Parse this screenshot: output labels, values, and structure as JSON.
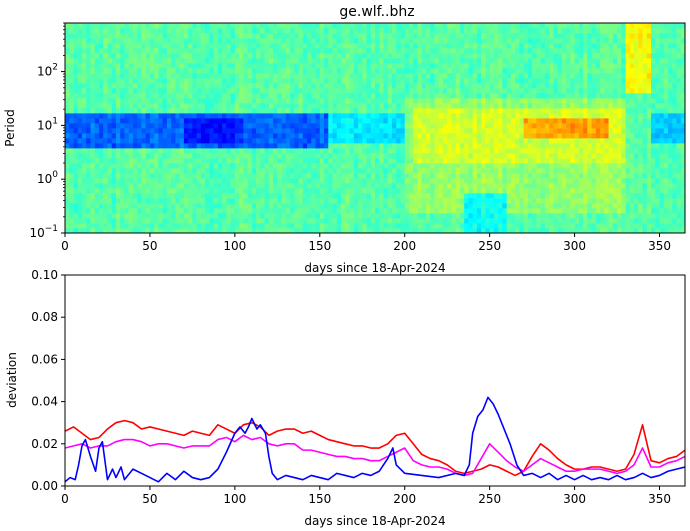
{
  "chart_data": [
    {
      "type": "heatmap",
      "title": "ge.wlf..bhz",
      "xlabel": "days since 18-Apr-2024",
      "ylabel": "Period",
      "xlim": [
        0,
        365
      ],
      "ylim": [
        0.1,
        800
      ],
      "yscale": "log",
      "x_ticks": [
        "0",
        "50",
        "100",
        "150",
        "200",
        "250",
        "300",
        "350"
      ],
      "y_ticks": [
        {
          "base": "10",
          "exp": "−1"
        },
        {
          "base": "10",
          "exp": "0"
        },
        {
          "base": "10",
          "exp": "1"
        },
        {
          "base": "10",
          "exp": "2"
        }
      ],
      "colormap": "jet",
      "features": [
        {
          "x": [
            0,
            155
          ],
          "period": [
            4,
            18
          ],
          "level": 0.22,
          "desc": "strong low band"
        },
        {
          "x": [
            70,
            105
          ],
          "period": [
            5,
            15
          ],
          "level": 0.15,
          "desc": "deepest low"
        },
        {
          "x": [
            270,
            320
          ],
          "period": [
            6,
            14
          ],
          "level": 0.72,
          "desc": "high band"
        },
        {
          "x": [
            235,
            260
          ],
          "period": [
            0.1,
            0.5
          ],
          "level": 0.38,
          "desc": "low patch"
        },
        {
          "x": [
            330,
            345
          ],
          "period": [
            40,
            800
          ],
          "level": 0.62,
          "desc": "high column"
        }
      ]
    },
    {
      "type": "line",
      "xlabel": "days since 18-Apr-2024",
      "ylabel": "deviation",
      "xlim": [
        0,
        365
      ],
      "ylim": [
        0,
        0.1
      ],
      "x_ticks": [
        "0",
        "50",
        "100",
        "150",
        "200",
        "250",
        "300",
        "350"
      ],
      "y_ticks": [
        "0.00",
        "0.02",
        "0.04",
        "0.06",
        "0.08",
        "0.10"
      ],
      "series": [
        {
          "color": "#ff0000",
          "x": [
            0,
            5,
            10,
            15,
            20,
            25,
            30,
            35,
            40,
            45,
            50,
            55,
            60,
            65,
            70,
            75,
            80,
            85,
            90,
            95,
            100,
            105,
            110,
            115,
            120,
            125,
            130,
            135,
            140,
            145,
            150,
            155,
            160,
            165,
            170,
            175,
            180,
            185,
            190,
            195,
            200,
            205,
            210,
            215,
            220,
            225,
            230,
            235,
            240,
            245,
            250,
            255,
            260,
            265,
            270,
            275,
            280,
            285,
            290,
            295,
            300,
            305,
            310,
            315,
            320,
            325,
            330,
            335,
            340,
            345,
            350,
            355,
            360,
            365
          ],
          "values": [
            0.026,
            0.028,
            0.025,
            0.022,
            0.023,
            0.027,
            0.03,
            0.031,
            0.03,
            0.027,
            0.028,
            0.027,
            0.026,
            0.025,
            0.024,
            0.026,
            0.025,
            0.024,
            0.029,
            0.027,
            0.025,
            0.029,
            0.03,
            0.028,
            0.024,
            0.026,
            0.027,
            0.027,
            0.025,
            0.026,
            0.024,
            0.022,
            0.021,
            0.02,
            0.019,
            0.019,
            0.018,
            0.018,
            0.02,
            0.024,
            0.025,
            0.02,
            0.015,
            0.013,
            0.012,
            0.01,
            0.007,
            0.006,
            0.007,
            0.008,
            0.01,
            0.009,
            0.007,
            0.005,
            0.007,
            0.014,
            0.02,
            0.017,
            0.013,
            0.01,
            0.008,
            0.008,
            0.009,
            0.009,
            0.008,
            0.007,
            0.008,
            0.015,
            0.029,
            0.012,
            0.011,
            0.013,
            0.014,
            0.017
          ]
        },
        {
          "color": "#ff00ff",
          "x": [
            0,
            5,
            10,
            15,
            20,
            25,
            30,
            35,
            40,
            45,
            50,
            55,
            60,
            65,
            70,
            75,
            80,
            85,
            90,
            95,
            100,
            105,
            110,
            115,
            120,
            125,
            130,
            135,
            140,
            145,
            150,
            155,
            160,
            165,
            170,
            175,
            180,
            185,
            190,
            195,
            200,
            205,
            210,
            215,
            220,
            225,
            230,
            235,
            240,
            245,
            250,
            255,
            260,
            265,
            270,
            275,
            280,
            285,
            290,
            295,
            300,
            305,
            310,
            315,
            320,
            325,
            330,
            335,
            340,
            345,
            350,
            355,
            360,
            365
          ],
          "values": [
            0.018,
            0.019,
            0.02,
            0.018,
            0.019,
            0.019,
            0.021,
            0.022,
            0.022,
            0.021,
            0.019,
            0.02,
            0.02,
            0.019,
            0.018,
            0.019,
            0.019,
            0.019,
            0.022,
            0.023,
            0.021,
            0.024,
            0.022,
            0.023,
            0.02,
            0.019,
            0.02,
            0.02,
            0.017,
            0.017,
            0.016,
            0.015,
            0.014,
            0.014,
            0.013,
            0.013,
            0.012,
            0.012,
            0.014,
            0.016,
            0.018,
            0.012,
            0.01,
            0.009,
            0.009,
            0.008,
            0.006,
            0.005,
            0.006,
            0.013,
            0.02,
            0.016,
            0.012,
            0.009,
            0.007,
            0.01,
            0.013,
            0.011,
            0.009,
            0.007,
            0.007,
            0.008,
            0.008,
            0.008,
            0.007,
            0.006,
            0.007,
            0.01,
            0.018,
            0.009,
            0.009,
            0.011,
            0.012,
            0.014
          ]
        },
        {
          "color": "#0000ff",
          "x": [
            0,
            3,
            6,
            8,
            10,
            12,
            15,
            18,
            20,
            22,
            25,
            28,
            30,
            33,
            35,
            40,
            45,
            50,
            55,
            60,
            65,
            70,
            75,
            80,
            85,
            90,
            95,
            100,
            103,
            106,
            108,
            110,
            113,
            115,
            118,
            120,
            122,
            125,
            130,
            135,
            140,
            145,
            150,
            155,
            160,
            165,
            170,
            175,
            180,
            185,
            190,
            193,
            195,
            200,
            210,
            220,
            230,
            235,
            238,
            240,
            243,
            246,
            249,
            252,
            255,
            258,
            262,
            266,
            270,
            275,
            280,
            285,
            290,
            295,
            300,
            305,
            310,
            315,
            320,
            325,
            330,
            335,
            340,
            345,
            350,
            355,
            360,
            365
          ],
          "values": [
            0.002,
            0.004,
            0.003,
            0.01,
            0.019,
            0.022,
            0.014,
            0.007,
            0.018,
            0.021,
            0.003,
            0.008,
            0.004,
            0.009,
            0.003,
            0.008,
            0.006,
            0.004,
            0.002,
            0.006,
            0.003,
            0.007,
            0.004,
            0.003,
            0.004,
            0.008,
            0.016,
            0.025,
            0.028,
            0.025,
            0.028,
            0.032,
            0.027,
            0.029,
            0.025,
            0.014,
            0.006,
            0.003,
            0.005,
            0.004,
            0.003,
            0.005,
            0.004,
            0.003,
            0.006,
            0.005,
            0.004,
            0.006,
            0.005,
            0.007,
            0.013,
            0.018,
            0.01,
            0.006,
            0.005,
            0.004,
            0.006,
            0.005,
            0.01,
            0.025,
            0.033,
            0.036,
            0.042,
            0.039,
            0.034,
            0.028,
            0.02,
            0.01,
            0.005,
            0.006,
            0.004,
            0.006,
            0.003,
            0.005,
            0.003,
            0.005,
            0.003,
            0.004,
            0.003,
            0.005,
            0.003,
            0.004,
            0.006,
            0.004,
            0.005,
            0.007,
            0.008,
            0.009
          ]
        }
      ]
    }
  ]
}
